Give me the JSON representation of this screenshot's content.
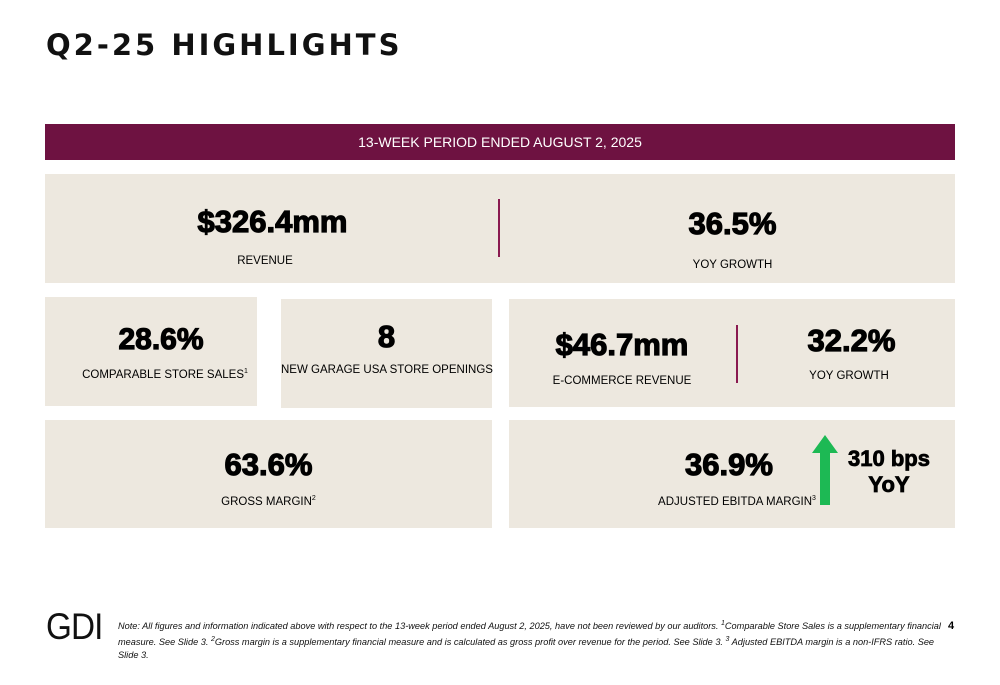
{
  "title": "Q2-25 HIGHLIGHTS",
  "banner": "13-WEEK PERIOD ENDED AUGUST 2, 2025",
  "revenue": {
    "value": "$326.4mm",
    "label": "REVENUE"
  },
  "revenue_growth": {
    "value": "36.5%",
    "label": "YOY GROWTH"
  },
  "comp_sales": {
    "value": "28.6%",
    "label": "COMPARABLE STORE SALES",
    "sup": "1"
  },
  "store_openings": {
    "value": "8",
    "label": "NEW GARAGE USA STORE OPENINGS"
  },
  "ecommerce": {
    "value": "$46.7mm",
    "label": "E-COMMERCE REVENUE"
  },
  "ecommerce_growth": {
    "value": "32.2%",
    "label": "YOY GROWTH"
  },
  "gross_margin": {
    "value": "63.6%",
    "label": "GROSS MARGIN",
    "sup": "2"
  },
  "ebitda_margin": {
    "value": "36.9%",
    "label": "ADJUSTED EBITDA MARGIN",
    "sup": "3"
  },
  "ebitda_change": {
    "line1": "310 bps",
    "line2": "YoY"
  },
  "colors": {
    "banner": "#6e1241",
    "card": "#ede8df",
    "arrow": "#1db954",
    "divider": "#8a1a50"
  },
  "footer": {
    "logo": "GDI",
    "note_1": "Note: All figures and information indicated above with respect to the 13-week period ended August 2, 2025, have not been reviewed by our auditors. ",
    "sup_1": "1",
    "note_2": "Comparable Store Sales is a supplementary financial measure. See Slide 3. ",
    "sup_2": "2",
    "note_3": "Gross margin is a supplementary financial measure and is calculated as gross profit over revenue for the period. See Slide 3. ",
    "sup_3": "3",
    "note_4": " Adjusted EBITDA margin is a non-IFRS ratio. See Slide 3.",
    "page_number": "4"
  }
}
